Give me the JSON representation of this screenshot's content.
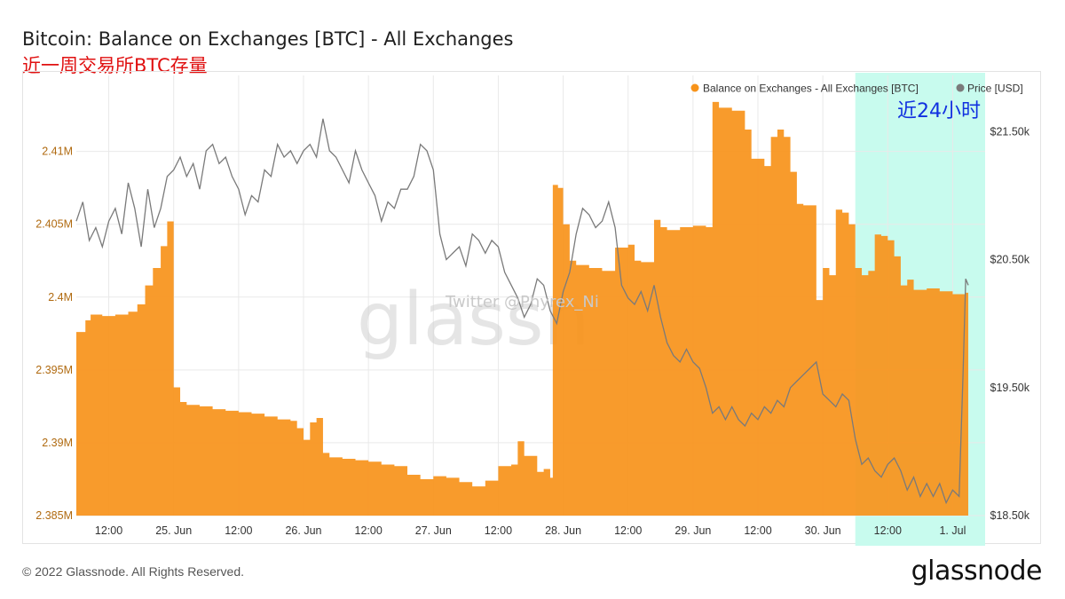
{
  "header": {
    "title": "Bitcoin: Balance on Exchanges [BTC] - All Exchanges",
    "subtitle": "近一周交易所BTC存量"
  },
  "annotations": {
    "highlight_label": "近24小时",
    "watermark_logo": "glassn",
    "watermark_twitter": "Twitter @Phyrex_Ni"
  },
  "footer": {
    "copyright": "© 2022 Glassnode. All Rights Reserved.",
    "brand": "glassnode"
  },
  "colors": {
    "balance": "#f7931a",
    "price": "#7a7a7a",
    "highlight": "#c8fbee",
    "annotation_text": "#1030e0",
    "grid": "#e9e9e9",
    "left_axis": "#b06a10",
    "right_axis": "#333333"
  },
  "chart_data": {
    "type": "area",
    "legend_position": "top-right",
    "grid": true,
    "x_range_days": [
      0.25,
      7.25
    ],
    "highlight_x_range": [
      6.25,
      7.25
    ],
    "x_ticks": [
      {
        "x": 0.5,
        "label": "12:00"
      },
      {
        "x": 1.0,
        "label": "25. Jun"
      },
      {
        "x": 1.5,
        "label": "12:00"
      },
      {
        "x": 2.0,
        "label": "26. Jun"
      },
      {
        "x": 2.5,
        "label": "12:00"
      },
      {
        "x": 3.0,
        "label": "27. Jun"
      },
      {
        "x": 3.5,
        "label": "12:00"
      },
      {
        "x": 4.0,
        "label": "28. Jun"
      },
      {
        "x": 4.5,
        "label": "12:00"
      },
      {
        "x": 5.0,
        "label": "29. Jun"
      },
      {
        "x": 5.5,
        "label": "12:00"
      },
      {
        "x": 6.0,
        "label": "30. Jun"
      },
      {
        "x": 6.5,
        "label": "12:00"
      },
      {
        "x": 7.0,
        "label": "1. Jul"
      }
    ],
    "left_axis": {
      "range": [
        2385000,
        2414000
      ],
      "ticks": [
        {
          "value": 2385000,
          "label": "2.385M"
        },
        {
          "value": 2390000,
          "label": "2.39M"
        },
        {
          "value": 2395000,
          "label": "2.395M"
        },
        {
          "value": 2400000,
          "label": "2.4M"
        },
        {
          "value": 2405000,
          "label": "2.405M"
        },
        {
          "value": 2410000,
          "label": "2.41M"
        }
      ]
    },
    "right_axis": {
      "range": [
        18500,
        21800
      ],
      "ticks": [
        {
          "value": 18500,
          "label": "$18.50k"
        },
        {
          "value": 19500,
          "label": "$19.50k"
        },
        {
          "value": 20500,
          "label": "$20.50k"
        },
        {
          "value": 21500,
          "label": "$21.50k"
        }
      ]
    },
    "series": [
      {
        "name": "Balance on Exchanges - All Exchanges [BTC]",
        "axis": "left",
        "style": "step-area",
        "points": [
          [
            0.25,
            2397600
          ],
          [
            0.32,
            2398400
          ],
          [
            0.36,
            2398800
          ],
          [
            0.45,
            2398700
          ],
          [
            0.55,
            2398800
          ],
          [
            0.65,
            2399000
          ],
          [
            0.72,
            2399500
          ],
          [
            0.78,
            2400800
          ],
          [
            0.84,
            2402000
          ],
          [
            0.9,
            2403500
          ],
          [
            0.95,
            2405200
          ],
          [
            1.0,
            2393800
          ],
          [
            1.05,
            2392800
          ],
          [
            1.1,
            2392600
          ],
          [
            1.2,
            2392500
          ],
          [
            1.3,
            2392300
          ],
          [
            1.4,
            2392200
          ],
          [
            1.5,
            2392100
          ],
          [
            1.6,
            2392000
          ],
          [
            1.7,
            2391800
          ],
          [
            1.8,
            2391600
          ],
          [
            1.9,
            2391500
          ],
          [
            1.95,
            2391000
          ],
          [
            2.0,
            2390200
          ],
          [
            2.05,
            2391400
          ],
          [
            2.1,
            2391700
          ],
          [
            2.15,
            2389300
          ],
          [
            2.2,
            2389000
          ],
          [
            2.3,
            2388900
          ],
          [
            2.4,
            2388800
          ],
          [
            2.5,
            2388700
          ],
          [
            2.6,
            2388500
          ],
          [
            2.7,
            2388400
          ],
          [
            2.8,
            2387800
          ],
          [
            2.9,
            2387500
          ],
          [
            3.0,
            2387700
          ],
          [
            3.1,
            2387600
          ],
          [
            3.2,
            2387300
          ],
          [
            3.3,
            2387000
          ],
          [
            3.4,
            2387400
          ],
          [
            3.5,
            2388400
          ],
          [
            3.6,
            2388500
          ],
          [
            3.65,
            2390100
          ],
          [
            3.7,
            2389100
          ],
          [
            3.8,
            2388000
          ],
          [
            3.85,
            2388200
          ],
          [
            3.9,
            2387600
          ],
          [
            3.92,
            2407700
          ],
          [
            3.96,
            2407500
          ],
          [
            4.0,
            2405000
          ],
          [
            4.05,
            2402500
          ],
          [
            4.1,
            2402200
          ],
          [
            4.2,
            2402000
          ],
          [
            4.3,
            2401800
          ],
          [
            4.4,
            2403400
          ],
          [
            4.5,
            2403600
          ],
          [
            4.55,
            2402500
          ],
          [
            4.6,
            2402400
          ],
          [
            4.7,
            2405300
          ],
          [
            4.75,
            2404800
          ],
          [
            4.8,
            2404600
          ],
          [
            4.85,
            2404600
          ],
          [
            4.9,
            2404800
          ],
          [
            4.95,
            2404800
          ],
          [
            5.0,
            2404900
          ],
          [
            5.05,
            2404900
          ],
          [
            5.1,
            2404800
          ],
          [
            5.15,
            2413400
          ],
          [
            5.2,
            2413000
          ],
          [
            5.3,
            2412800
          ],
          [
            5.4,
            2411500
          ],
          [
            5.45,
            2409500
          ],
          [
            5.55,
            2409000
          ],
          [
            5.6,
            2411000
          ],
          [
            5.65,
            2411500
          ],
          [
            5.7,
            2411000
          ],
          [
            5.75,
            2408600
          ],
          [
            5.8,
            2406400
          ],
          [
            5.85,
            2406300
          ],
          [
            5.9,
            2406300
          ],
          [
            5.95,
            2399800
          ],
          [
            6.0,
            2402000
          ],
          [
            6.05,
            2401500
          ],
          [
            6.1,
            2406000
          ],
          [
            6.15,
            2405800
          ],
          [
            6.2,
            2405000
          ],
          [
            6.25,
            2402000
          ],
          [
            6.3,
            2401500
          ],
          [
            6.35,
            2401800
          ],
          [
            6.4,
            2404300
          ],
          [
            6.45,
            2404200
          ],
          [
            6.5,
            2403900
          ],
          [
            6.55,
            2402800
          ],
          [
            6.6,
            2400800
          ],
          [
            6.65,
            2401200
          ],
          [
            6.7,
            2400500
          ],
          [
            6.8,
            2400600
          ],
          [
            6.9,
            2400400
          ],
          [
            7.0,
            2400200
          ],
          [
            7.1,
            2400300
          ],
          [
            7.12,
            2400000
          ]
        ]
      },
      {
        "name": "Price [USD]",
        "axis": "right",
        "style": "line",
        "points": [
          [
            0.25,
            20800
          ],
          [
            0.3,
            20950
          ],
          [
            0.35,
            20650
          ],
          [
            0.4,
            20750
          ],
          [
            0.45,
            20600
          ],
          [
            0.5,
            20800
          ],
          [
            0.55,
            20900
          ],
          [
            0.6,
            20700
          ],
          [
            0.65,
            21100
          ],
          [
            0.7,
            20900
          ],
          [
            0.75,
            20600
          ],
          [
            0.8,
            21050
          ],
          [
            0.85,
            20750
          ],
          [
            0.9,
            20900
          ],
          [
            0.95,
            21150
          ],
          [
            1.0,
            21200
          ],
          [
            1.05,
            21300
          ],
          [
            1.1,
            21150
          ],
          [
            1.15,
            21250
          ],
          [
            1.2,
            21050
          ],
          [
            1.25,
            21350
          ],
          [
            1.3,
            21400
          ],
          [
            1.35,
            21250
          ],
          [
            1.4,
            21300
          ],
          [
            1.45,
            21150
          ],
          [
            1.5,
            21050
          ],
          [
            1.55,
            20850
          ],
          [
            1.6,
            21000
          ],
          [
            1.65,
            20950
          ],
          [
            1.7,
            21200
          ],
          [
            1.75,
            21150
          ],
          [
            1.8,
            21400
          ],
          [
            1.85,
            21300
          ],
          [
            1.9,
            21350
          ],
          [
            1.95,
            21250
          ],
          [
            2.0,
            21350
          ],
          [
            2.05,
            21400
          ],
          [
            2.1,
            21300
          ],
          [
            2.15,
            21600
          ],
          [
            2.2,
            21350
          ],
          [
            2.25,
            21300
          ],
          [
            2.3,
            21200
          ],
          [
            2.35,
            21100
          ],
          [
            2.4,
            21350
          ],
          [
            2.45,
            21200
          ],
          [
            2.5,
            21100
          ],
          [
            2.55,
            21000
          ],
          [
            2.6,
            20800
          ],
          [
            2.65,
            20950
          ],
          [
            2.7,
            20900
          ],
          [
            2.75,
            21050
          ],
          [
            2.8,
            21050
          ],
          [
            2.85,
            21150
          ],
          [
            2.9,
            21400
          ],
          [
            2.95,
            21350
          ],
          [
            3.0,
            21200
          ],
          [
            3.05,
            20700
          ],
          [
            3.1,
            20500
          ],
          [
            3.2,
            20600
          ],
          [
            3.25,
            20450
          ],
          [
            3.3,
            20700
          ],
          [
            3.35,
            20650
          ],
          [
            3.4,
            20550
          ],
          [
            3.45,
            20650
          ],
          [
            3.5,
            20600
          ],
          [
            3.55,
            20400
          ],
          [
            3.6,
            20300
          ],
          [
            3.65,
            20200
          ],
          [
            3.7,
            20050
          ],
          [
            3.75,
            20150
          ],
          [
            3.8,
            20350
          ],
          [
            3.85,
            20300
          ],
          [
            3.9,
            20100
          ],
          [
            3.95,
            20000
          ],
          [
            4.0,
            20250
          ],
          [
            4.05,
            20400
          ],
          [
            4.1,
            20700
          ],
          [
            4.15,
            20900
          ],
          [
            4.2,
            20850
          ],
          [
            4.25,
            20750
          ],
          [
            4.3,
            20800
          ],
          [
            4.35,
            20950
          ],
          [
            4.4,
            20750
          ],
          [
            4.45,
            20300
          ],
          [
            4.5,
            20200
          ],
          [
            4.55,
            20150
          ],
          [
            4.6,
            20250
          ],
          [
            4.65,
            20100
          ],
          [
            4.7,
            20300
          ],
          [
            4.75,
            20050
          ],
          [
            4.8,
            19850
          ],
          [
            4.85,
            19750
          ],
          [
            4.9,
            19700
          ],
          [
            4.95,
            19800
          ],
          [
            5.0,
            19700
          ],
          [
            5.05,
            19650
          ],
          [
            5.1,
            19500
          ],
          [
            5.15,
            19300
          ],
          [
            5.2,
            19350
          ],
          [
            5.25,
            19250
          ],
          [
            5.3,
            19350
          ],
          [
            5.35,
            19250
          ],
          [
            5.4,
            19200
          ],
          [
            5.45,
            19300
          ],
          [
            5.5,
            19250
          ],
          [
            5.55,
            19350
          ],
          [
            5.6,
            19300
          ],
          [
            5.65,
            19400
          ],
          [
            5.7,
            19350
          ],
          [
            5.75,
            19500
          ],
          [
            5.8,
            19550
          ],
          [
            5.85,
            19600
          ],
          [
            5.9,
            19650
          ],
          [
            5.95,
            19700
          ],
          [
            6.0,
            19450
          ],
          [
            6.05,
            19400
          ],
          [
            6.1,
            19350
          ],
          [
            6.15,
            19450
          ],
          [
            6.2,
            19400
          ],
          [
            6.25,
            19100
          ],
          [
            6.3,
            18900
          ],
          [
            6.35,
            18950
          ],
          [
            6.4,
            18850
          ],
          [
            6.45,
            18800
          ],
          [
            6.5,
            18900
          ],
          [
            6.55,
            18950
          ],
          [
            6.6,
            18850
          ],
          [
            6.65,
            18700
          ],
          [
            6.7,
            18800
          ],
          [
            6.75,
            18650
          ],
          [
            6.8,
            18750
          ],
          [
            6.85,
            18650
          ],
          [
            6.9,
            18750
          ],
          [
            6.95,
            18600
          ],
          [
            7.0,
            18700
          ],
          [
            7.05,
            18650
          ],
          [
            7.08,
            19600
          ],
          [
            7.1,
            20350
          ],
          [
            7.12,
            20300
          ]
        ]
      }
    ]
  }
}
